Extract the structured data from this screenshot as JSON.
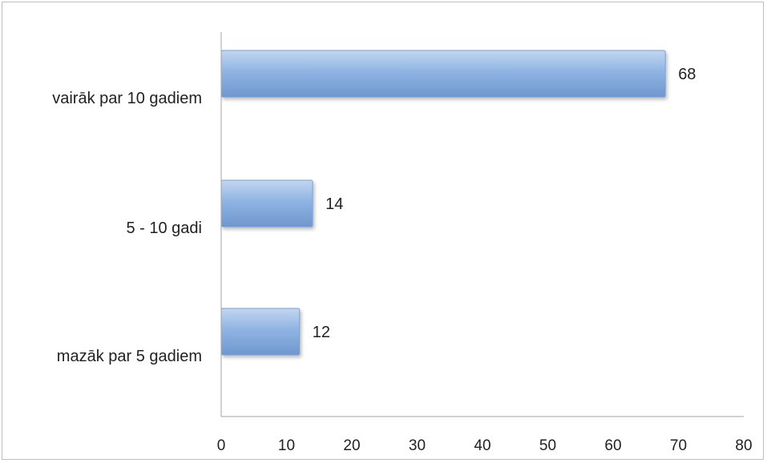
{
  "chart_data": {
    "type": "bar",
    "orientation": "horizontal",
    "categories": [
      "vairāk par 10 gadiem",
      "5 - 10 gadi",
      "mazāk par 5 gadiem"
    ],
    "values": [
      68,
      14,
      12
    ],
    "data_labels": [
      "68",
      "14",
      "12"
    ],
    "title": "",
    "xlabel": "",
    "ylabel": "",
    "xlim": [
      0,
      80
    ],
    "x_ticks": [
      "0",
      "10",
      "20",
      "30",
      "40",
      "50",
      "60",
      "70",
      "80"
    ],
    "grid": false,
    "legend": "none",
    "bar_color": "#8fb4e3",
    "bar_color_dark": "#6f97cf",
    "axis_color": "#a6a6a6"
  }
}
